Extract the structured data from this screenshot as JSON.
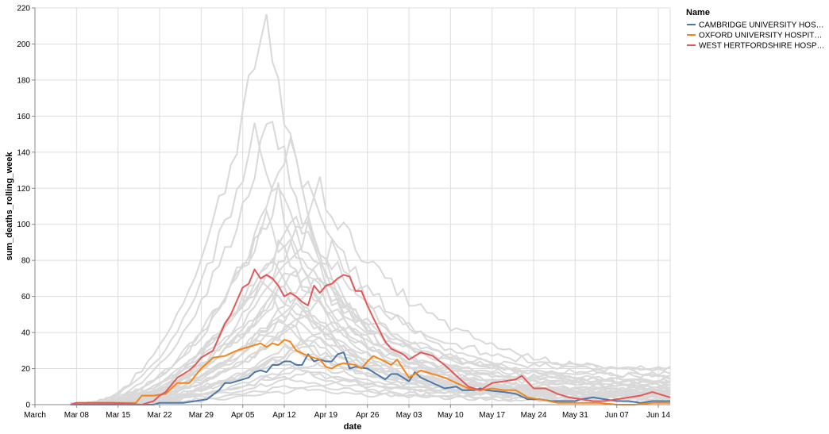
{
  "chart_data": {
    "type": "line",
    "xlabel": "date",
    "ylabel": "sum_deaths_rolling_week",
    "ylim": [
      0,
      220
    ],
    "yticks": [
      0,
      20,
      40,
      60,
      80,
      100,
      120,
      140,
      160,
      180,
      200,
      220
    ],
    "xlim": [
      "2020-03-01",
      "2020-06-16"
    ],
    "xticks": [
      {
        "date": "2020-03-01",
        "label": "March"
      },
      {
        "date": "2020-03-08",
        "label": "Mar 08"
      },
      {
        "date": "2020-03-15",
        "label": "Mar 15"
      },
      {
        "date": "2020-03-22",
        "label": "Mar 22"
      },
      {
        "date": "2020-03-29",
        "label": "Mar 29"
      },
      {
        "date": "2020-04-05",
        "label": "Apr 05"
      },
      {
        "date": "2020-04-12",
        "label": "Apr 12"
      },
      {
        "date": "2020-04-19",
        "label": "Apr 19"
      },
      {
        "date": "2020-04-26",
        "label": "Apr 26"
      },
      {
        "date": "2020-05-03",
        "label": "May 03"
      },
      {
        "date": "2020-05-10",
        "label": "May 10"
      },
      {
        "date": "2020-05-17",
        "label": "May 17"
      },
      {
        "date": "2020-05-24",
        "label": "May 24"
      },
      {
        "date": "2020-05-31",
        "label": "May 31"
      },
      {
        "date": "2020-06-07",
        "label": "Jun 07"
      },
      {
        "date": "2020-06-14",
        "label": "Jun 14"
      }
    ],
    "grid": true,
    "legend": {
      "title": "Name",
      "placement": "top-right"
    },
    "background_series_color": "#d9d9d9",
    "background_series": [
      {
        "peak_date": "2020-04-09",
        "peak": 218,
        "start": 0,
        "tail": 10
      },
      {
        "peak_date": "2020-04-10",
        "peak": 161,
        "start": 0,
        "tail": 8
      },
      {
        "peak_date": "2020-04-07",
        "peak": 155,
        "start": 0,
        "tail": 12
      },
      {
        "peak_date": "2020-04-13",
        "peak": 142,
        "start": 0,
        "tail": 9
      },
      {
        "peak_date": "2020-04-18",
        "peak": 120,
        "start": 0,
        "tail": 14
      },
      {
        "peak_date": "2020-04-11",
        "peak": 118,
        "start": 0,
        "tail": 7
      },
      {
        "peak_date": "2020-04-14",
        "peak": 108,
        "start": 0,
        "tail": 6
      },
      {
        "peak_date": "2020-04-09",
        "peak": 104,
        "start": 0,
        "tail": 5
      },
      {
        "peak_date": "2020-04-16",
        "peak": 98,
        "start": 0,
        "tail": 18
      },
      {
        "peak_date": "2020-04-12",
        "peak": 92,
        "start": 0,
        "tail": 11
      },
      {
        "peak_date": "2020-04-20",
        "peak": 88,
        "start": 0,
        "tail": 20
      },
      {
        "peak_date": "2020-04-10",
        "peak": 84,
        "start": 0,
        "tail": 6
      },
      {
        "peak_date": "2020-04-15",
        "peak": 80,
        "start": 0,
        "tail": 15
      },
      {
        "peak_date": "2020-04-13",
        "peak": 76,
        "start": 0,
        "tail": 9
      },
      {
        "peak_date": "2020-04-08",
        "peak": 72,
        "start": 0,
        "tail": 4
      },
      {
        "peak_date": "2020-04-17",
        "peak": 70,
        "start": 0,
        "tail": 12
      },
      {
        "peak_date": "2020-04-12",
        "peak": 66,
        "start": 0,
        "tail": 8
      },
      {
        "peak_date": "2020-04-19",
        "peak": 62,
        "start": 0,
        "tail": 16
      },
      {
        "peak_date": "2020-04-10",
        "peak": 58,
        "start": 0,
        "tail": 5
      },
      {
        "peak_date": "2020-04-14",
        "peak": 55,
        "start": 0,
        "tail": 10
      },
      {
        "peak_date": "2020-04-16",
        "peak": 52,
        "start": 0,
        "tail": 7
      },
      {
        "peak_date": "2020-04-11",
        "peak": 49,
        "start": 0,
        "tail": 6
      },
      {
        "peak_date": "2020-04-21",
        "peak": 46,
        "start": 0,
        "tail": 13
      },
      {
        "peak_date": "2020-04-13",
        "peak": 43,
        "start": 0,
        "tail": 5
      },
      {
        "peak_date": "2020-04-09",
        "peak": 40,
        "start": 0,
        "tail": 4
      },
      {
        "peak_date": "2020-04-18",
        "peak": 37,
        "start": 0,
        "tail": 9
      },
      {
        "peak_date": "2020-04-15",
        "peak": 34,
        "start": 0,
        "tail": 6
      },
      {
        "peak_date": "2020-04-12",
        "peak": 31,
        "start": 0,
        "tail": 5
      },
      {
        "peak_date": "2020-04-20",
        "peak": 28,
        "start": 0,
        "tail": 8
      },
      {
        "peak_date": "2020-04-10",
        "peak": 25,
        "start": 0,
        "tail": 3
      },
      {
        "peak_date": "2020-04-14",
        "peak": 22,
        "start": 0,
        "tail": 4
      },
      {
        "peak_date": "2020-04-17",
        "peak": 19,
        "start": 0,
        "tail": 5
      },
      {
        "peak_date": "2020-04-11",
        "peak": 16,
        "start": 0,
        "tail": 3
      },
      {
        "peak_date": "2020-04-22",
        "peak": 13,
        "start": 0,
        "tail": 4
      },
      {
        "peak_date": "2020-04-13",
        "peak": 10,
        "start": 0,
        "tail": 2
      }
    ],
    "series": [
      {
        "name": "CAMBRIDGE UNIVERSITY HOS…",
        "color": "#4c78a8",
        "points": [
          [
            "2020-03-07",
            0
          ],
          [
            "2020-03-14",
            0
          ],
          [
            "2020-03-21",
            0
          ],
          [
            "2020-03-22",
            1
          ],
          [
            "2020-03-26",
            1
          ],
          [
            "2020-03-28",
            2
          ],
          [
            "2020-03-30",
            3
          ],
          [
            "2020-04-01",
            8
          ],
          [
            "2020-04-02",
            12
          ],
          [
            "2020-04-03",
            12
          ],
          [
            "2020-04-05",
            14
          ],
          [
            "2020-04-06",
            15
          ],
          [
            "2020-04-07",
            18
          ],
          [
            "2020-04-08",
            19
          ],
          [
            "2020-04-09",
            18
          ],
          [
            "2020-04-10",
            22
          ],
          [
            "2020-04-11",
            22
          ],
          [
            "2020-04-12",
            24
          ],
          [
            "2020-04-13",
            24
          ],
          [
            "2020-04-14",
            22
          ],
          [
            "2020-04-15",
            22
          ],
          [
            "2020-04-16",
            28
          ],
          [
            "2020-04-17",
            24
          ],
          [
            "2020-04-18",
            25
          ],
          [
            "2020-04-19",
            24
          ],
          [
            "2020-04-20",
            24
          ],
          [
            "2020-04-21",
            28
          ],
          [
            "2020-04-22",
            29
          ],
          [
            "2020-04-23",
            20
          ],
          [
            "2020-04-24",
            21
          ],
          [
            "2020-04-26",
            20
          ],
          [
            "2020-04-28",
            16
          ],
          [
            "2020-04-29",
            14
          ],
          [
            "2020-04-30",
            17
          ],
          [
            "2020-05-01",
            17
          ],
          [
            "2020-05-03",
            13
          ],
          [
            "2020-05-04",
            18
          ],
          [
            "2020-05-05",
            15
          ],
          [
            "2020-05-07",
            12
          ],
          [
            "2020-05-09",
            9
          ],
          [
            "2020-05-11",
            10
          ],
          [
            "2020-05-12",
            8
          ],
          [
            "2020-05-14",
            8
          ],
          [
            "2020-05-15",
            9
          ],
          [
            "2020-05-16",
            8
          ],
          [
            "2020-05-19",
            7
          ],
          [
            "2020-05-21",
            6
          ],
          [
            "2020-05-23",
            3
          ],
          [
            "2020-05-25",
            3
          ],
          [
            "2020-05-27",
            2
          ],
          [
            "2020-05-29",
            2
          ],
          [
            "2020-05-31",
            2
          ],
          [
            "2020-06-01",
            3
          ],
          [
            "2020-06-03",
            4
          ],
          [
            "2020-06-05",
            3
          ],
          [
            "2020-06-07",
            2
          ],
          [
            "2020-06-09",
            2
          ],
          [
            "2020-06-11",
            1
          ],
          [
            "2020-06-13",
            2
          ],
          [
            "2020-06-16",
            2
          ]
        ]
      },
      {
        "name": "OXFORD UNIVERSITY HOSPIT…",
        "color": "#f58518",
        "points": [
          [
            "2020-03-07",
            0
          ],
          [
            "2020-03-08",
            1
          ],
          [
            "2020-03-13",
            1
          ],
          [
            "2020-03-15",
            1
          ],
          [
            "2020-03-18",
            1
          ],
          [
            "2020-03-19",
            5
          ],
          [
            "2020-03-21",
            5
          ],
          [
            "2020-03-23",
            6
          ],
          [
            "2020-03-25",
            12
          ],
          [
            "2020-03-27",
            12
          ],
          [
            "2020-03-29",
            20
          ],
          [
            "2020-03-31",
            26
          ],
          [
            "2020-04-02",
            27
          ],
          [
            "2020-04-04",
            30
          ],
          [
            "2020-04-05",
            31
          ],
          [
            "2020-04-06",
            32
          ],
          [
            "2020-04-08",
            34
          ],
          [
            "2020-04-09",
            32
          ],
          [
            "2020-04-10",
            34
          ],
          [
            "2020-04-11",
            33
          ],
          [
            "2020-04-12",
            36
          ],
          [
            "2020-04-13",
            35
          ],
          [
            "2020-04-14",
            30
          ],
          [
            "2020-04-16",
            27
          ],
          [
            "2020-04-18",
            25
          ],
          [
            "2020-04-19",
            21
          ],
          [
            "2020-04-20",
            20
          ],
          [
            "2020-04-21",
            22
          ],
          [
            "2020-04-22",
            23
          ],
          [
            "2020-04-24",
            22
          ],
          [
            "2020-04-25",
            20
          ],
          [
            "2020-04-26",
            24
          ],
          [
            "2020-04-27",
            27
          ],
          [
            "2020-04-29",
            24
          ],
          [
            "2020-04-30",
            22
          ],
          [
            "2020-05-01",
            25
          ],
          [
            "2020-05-03",
            15
          ],
          [
            "2020-05-05",
            19
          ],
          [
            "2020-05-07",
            17
          ],
          [
            "2020-05-09",
            15
          ],
          [
            "2020-05-11",
            12
          ],
          [
            "2020-05-13",
            9
          ],
          [
            "2020-05-15",
            8
          ],
          [
            "2020-05-17",
            9
          ],
          [
            "2020-05-19",
            8
          ],
          [
            "2020-05-21",
            8
          ],
          [
            "2020-05-23",
            4
          ],
          [
            "2020-05-25",
            3
          ],
          [
            "2020-05-28",
            1
          ],
          [
            "2020-05-30",
            1
          ],
          [
            "2020-06-01",
            1
          ],
          [
            "2020-06-04",
            1
          ],
          [
            "2020-06-07",
            0
          ],
          [
            "2020-06-10",
            0
          ],
          [
            "2020-06-13",
            1
          ],
          [
            "2020-06-16",
            1
          ]
        ]
      },
      {
        "name": "WEST HERTFORDSHIRE HOSP…",
        "color": "#e45756",
        "points": [
          [
            "2020-03-07",
            0
          ],
          [
            "2020-03-08",
            1
          ],
          [
            "2020-03-14",
            1
          ],
          [
            "2020-03-19",
            0
          ],
          [
            "2020-03-21",
            2
          ],
          [
            "2020-03-22",
            5
          ],
          [
            "2020-03-23",
            7
          ],
          [
            "2020-03-25",
            15
          ],
          [
            "2020-03-26",
            17
          ],
          [
            "2020-03-27",
            19
          ],
          [
            "2020-03-28",
            22
          ],
          [
            "2020-03-29",
            26
          ],
          [
            "2020-03-31",
            30
          ],
          [
            "2020-04-02",
            45
          ],
          [
            "2020-04-03",
            50
          ],
          [
            "2020-04-05",
            65
          ],
          [
            "2020-04-06",
            67
          ],
          [
            "2020-04-07",
            75
          ],
          [
            "2020-04-08",
            70
          ],
          [
            "2020-04-09",
            72
          ],
          [
            "2020-04-10",
            70
          ],
          [
            "2020-04-11",
            66
          ],
          [
            "2020-04-12",
            60
          ],
          [
            "2020-04-13",
            62
          ],
          [
            "2020-04-14",
            60
          ],
          [
            "2020-04-15",
            57
          ],
          [
            "2020-04-16",
            55
          ],
          [
            "2020-04-17",
            66
          ],
          [
            "2020-04-18",
            62
          ],
          [
            "2020-04-19",
            66
          ],
          [
            "2020-04-20",
            67
          ],
          [
            "2020-04-21",
            70
          ],
          [
            "2020-04-22",
            72
          ],
          [
            "2020-04-23",
            71
          ],
          [
            "2020-04-24",
            63
          ],
          [
            "2020-04-25",
            63
          ],
          [
            "2020-04-26",
            55
          ],
          [
            "2020-04-27",
            48
          ],
          [
            "2020-04-29",
            35
          ],
          [
            "2020-04-30",
            31
          ],
          [
            "2020-05-02",
            28
          ],
          [
            "2020-05-03",
            25
          ],
          [
            "2020-05-05",
            29
          ],
          [
            "2020-05-07",
            27
          ],
          [
            "2020-05-09",
            22
          ],
          [
            "2020-05-11",
            16
          ],
          [
            "2020-05-13",
            10
          ],
          [
            "2020-05-15",
            8
          ],
          [
            "2020-05-17",
            12
          ],
          [
            "2020-05-19",
            13
          ],
          [
            "2020-05-21",
            14
          ],
          [
            "2020-05-22",
            16
          ],
          [
            "2020-05-24",
            9
          ],
          [
            "2020-05-26",
            9
          ],
          [
            "2020-05-28",
            6
          ],
          [
            "2020-05-30",
            4
          ],
          [
            "2020-06-01",
            3
          ],
          [
            "2020-06-03",
            2
          ],
          [
            "2020-06-05",
            2
          ],
          [
            "2020-06-07",
            3
          ],
          [
            "2020-06-09",
            4
          ],
          [
            "2020-06-11",
            5
          ],
          [
            "2020-06-13",
            7
          ],
          [
            "2020-06-16",
            4
          ]
        ]
      }
    ]
  }
}
